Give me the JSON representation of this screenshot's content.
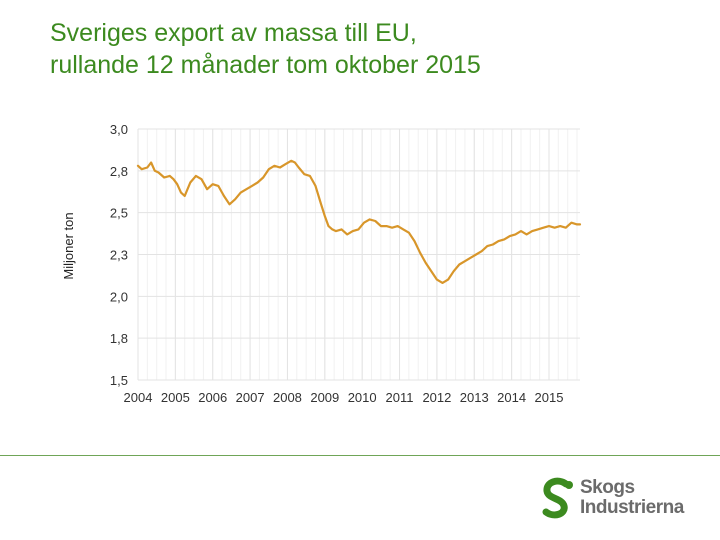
{
  "slide": {
    "title_line1": "Sveriges export av massa till EU,",
    "title_line2": "rullande 12 månader tom oktober 2015"
  },
  "logo": {
    "line1": "Skogs",
    "line2": "Industrierna",
    "color_green": "#3c8a1f"
  },
  "colors": {
    "line": "#d8962a",
    "grid": "#e3e3e3",
    "axis_text": "#333333"
  },
  "chart_data": {
    "type": "line",
    "title": "",
    "xlabel": "",
    "ylabel": "Miljoner ton",
    "ylim": [
      1.5,
      3.0
    ],
    "xlim": [
      2004.0,
      2015.83
    ],
    "yticks": [
      {
        "value": 1.5,
        "label": "1,5"
      },
      {
        "value": 1.75,
        "label": "1,8"
      },
      {
        "value": 2.0,
        "label": "2,0"
      },
      {
        "value": 2.25,
        "label": "2,3"
      },
      {
        "value": 2.5,
        "label": "2,5"
      },
      {
        "value": 2.75,
        "label": "2,8"
      },
      {
        "value": 3.0,
        "label": "3,0"
      }
    ],
    "xticks": [
      "2004",
      "2005",
      "2006",
      "2007",
      "2008",
      "2009",
      "2010",
      "2011",
      "2012",
      "2013",
      "2014",
      "2015"
    ],
    "series": [
      {
        "name": "Export av massa till EU",
        "x": [
          2004.0,
          2004.1,
          2004.25,
          2004.35,
          2004.45,
          2004.55,
          2004.7,
          2004.85,
          2004.95,
          2005.05,
          2005.15,
          2005.25,
          2005.4,
          2005.55,
          2005.7,
          2005.85,
          2006.0,
          2006.15,
          2006.3,
          2006.45,
          2006.6,
          2006.75,
          2006.9,
          2007.05,
          2007.2,
          2007.35,
          2007.5,
          2007.65,
          2007.8,
          2007.95,
          2008.1,
          2008.2,
          2008.3,
          2008.45,
          2008.6,
          2008.75,
          2008.9,
          2009.0,
          2009.1,
          2009.2,
          2009.3,
          2009.45,
          2009.6,
          2009.75,
          2009.9,
          2010.05,
          2010.2,
          2010.35,
          2010.5,
          2010.65,
          2010.8,
          2010.95,
          2011.1,
          2011.25,
          2011.4,
          2011.55,
          2011.7,
          2011.85,
          2012.0,
          2012.15,
          2012.3,
          2012.45,
          2012.6,
          2012.75,
          2012.9,
          2013.05,
          2013.2,
          2013.35,
          2013.5,
          2013.65,
          2013.8,
          2013.95,
          2014.1,
          2014.25,
          2014.4,
          2014.55,
          2014.7,
          2014.85,
          2015.0,
          2015.15,
          2015.3,
          2015.45,
          2015.6,
          2015.75,
          2015.83
        ],
        "y": [
          2.78,
          2.76,
          2.77,
          2.8,
          2.75,
          2.74,
          2.71,
          2.72,
          2.7,
          2.67,
          2.62,
          2.6,
          2.68,
          2.72,
          2.7,
          2.64,
          2.67,
          2.66,
          2.6,
          2.55,
          2.58,
          2.62,
          2.64,
          2.66,
          2.68,
          2.71,
          2.76,
          2.78,
          2.77,
          2.79,
          2.81,
          2.8,
          2.77,
          2.73,
          2.72,
          2.66,
          2.55,
          2.48,
          2.42,
          2.4,
          2.39,
          2.4,
          2.37,
          2.39,
          2.4,
          2.44,
          2.46,
          2.45,
          2.42,
          2.42,
          2.41,
          2.42,
          2.4,
          2.38,
          2.33,
          2.26,
          2.2,
          2.15,
          2.1,
          2.08,
          2.1,
          2.15,
          2.19,
          2.21,
          2.23,
          2.25,
          2.27,
          2.3,
          2.31,
          2.33,
          2.34,
          2.36,
          2.37,
          2.39,
          2.37,
          2.39,
          2.4,
          2.41,
          2.42,
          2.41,
          2.42,
          2.41,
          2.44,
          2.43,
          2.43
        ]
      }
    ]
  }
}
